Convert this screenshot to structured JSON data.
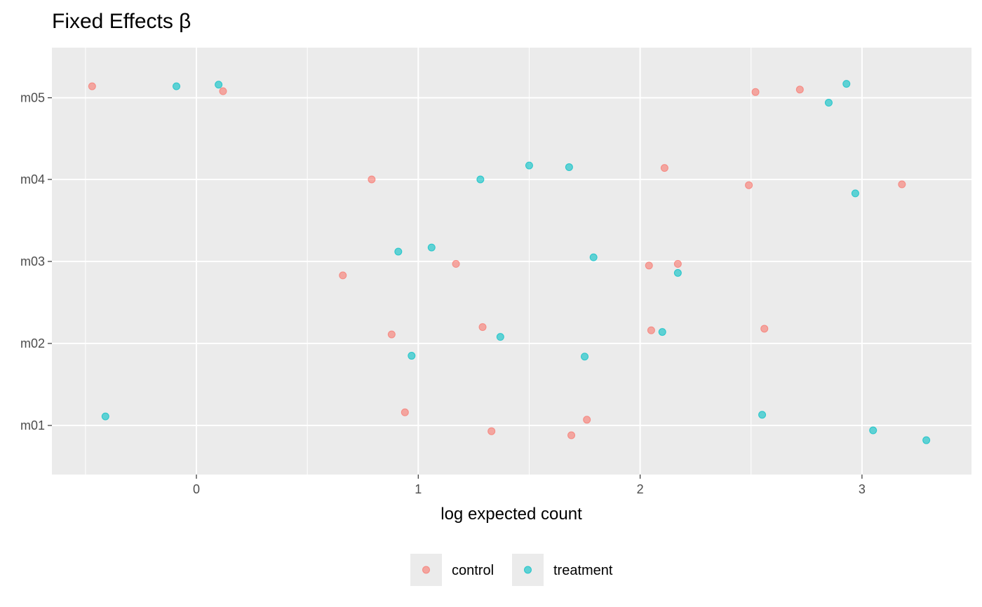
{
  "chart_data": {
    "type": "scatter",
    "title": "Fixed Effects β",
    "xlabel": "log expected count",
    "ylabel": "",
    "xlim": [
      -0.65,
      3.5
    ],
    "x_ticks": [
      "0",
      "1",
      "2",
      "3"
    ],
    "categories": [
      "m01",
      "m02",
      "m03",
      "m04",
      "m05"
    ],
    "grid": true,
    "legend_position": "bottom",
    "series": [
      {
        "name": "control",
        "color": "#F8766D",
        "points": [
          {
            "x": -0.47,
            "category": "m05",
            "jitter": 0.14
          },
          {
            "x": 0.12,
            "category": "m05",
            "jitter": 0.08
          },
          {
            "x": 2.52,
            "category": "m05",
            "jitter": 0.07
          },
          {
            "x": 2.72,
            "category": "m05",
            "jitter": 0.1
          },
          {
            "x": 0.79,
            "category": "m04",
            "jitter": 0.0
          },
          {
            "x": 2.11,
            "category": "m04",
            "jitter": 0.14
          },
          {
            "x": 2.49,
            "category": "m04",
            "jitter": -0.07
          },
          {
            "x": 3.18,
            "category": "m04",
            "jitter": -0.06
          },
          {
            "x": 0.66,
            "category": "m03",
            "jitter": -0.17
          },
          {
            "x": 1.17,
            "category": "m03",
            "jitter": -0.03
          },
          {
            "x": 2.04,
            "category": "m03",
            "jitter": -0.05
          },
          {
            "x": 2.17,
            "category": "m03",
            "jitter": -0.03
          },
          {
            "x": 0.88,
            "category": "m02",
            "jitter": 0.11
          },
          {
            "x": 1.29,
            "category": "m02",
            "jitter": 0.2
          },
          {
            "x": 2.05,
            "category": "m02",
            "jitter": 0.16
          },
          {
            "x": 2.56,
            "category": "m02",
            "jitter": 0.18
          },
          {
            "x": 0.94,
            "category": "m01",
            "jitter": 0.16
          },
          {
            "x": 1.33,
            "category": "m01",
            "jitter": -0.07
          },
          {
            "x": 1.69,
            "category": "m01",
            "jitter": -0.12
          },
          {
            "x": 1.76,
            "category": "m01",
            "jitter": 0.07
          }
        ]
      },
      {
        "name": "treatment",
        "color": "#00BFC4",
        "points": [
          {
            "x": -0.09,
            "category": "m05",
            "jitter": 0.14
          },
          {
            "x": 0.1,
            "category": "m05",
            "jitter": 0.16
          },
          {
            "x": 2.85,
            "category": "m05",
            "jitter": -0.06
          },
          {
            "x": 2.93,
            "category": "m05",
            "jitter": 0.17
          },
          {
            "x": 1.28,
            "category": "m04",
            "jitter": 0.0
          },
          {
            "x": 1.5,
            "category": "m04",
            "jitter": 0.17
          },
          {
            "x": 1.68,
            "category": "m04",
            "jitter": 0.15
          },
          {
            "x": 2.97,
            "category": "m04",
            "jitter": -0.17
          },
          {
            "x": 0.91,
            "category": "m03",
            "jitter": 0.12
          },
          {
            "x": 1.06,
            "category": "m03",
            "jitter": 0.17
          },
          {
            "x": 1.79,
            "category": "m03",
            "jitter": 0.05
          },
          {
            "x": 2.17,
            "category": "m03",
            "jitter": -0.14
          },
          {
            "x": 0.97,
            "category": "m02",
            "jitter": -0.15
          },
          {
            "x": 1.37,
            "category": "m02",
            "jitter": 0.08
          },
          {
            "x": 1.75,
            "category": "m02",
            "jitter": -0.16
          },
          {
            "x": 2.1,
            "category": "m02",
            "jitter": 0.14
          },
          {
            "x": -0.41,
            "category": "m01",
            "jitter": 0.11
          },
          {
            "x": 2.55,
            "category": "m01",
            "jitter": 0.13
          },
          {
            "x": 3.05,
            "category": "m01",
            "jitter": -0.06
          },
          {
            "x": 3.29,
            "category": "m01",
            "jitter": -0.18
          }
        ]
      }
    ]
  }
}
